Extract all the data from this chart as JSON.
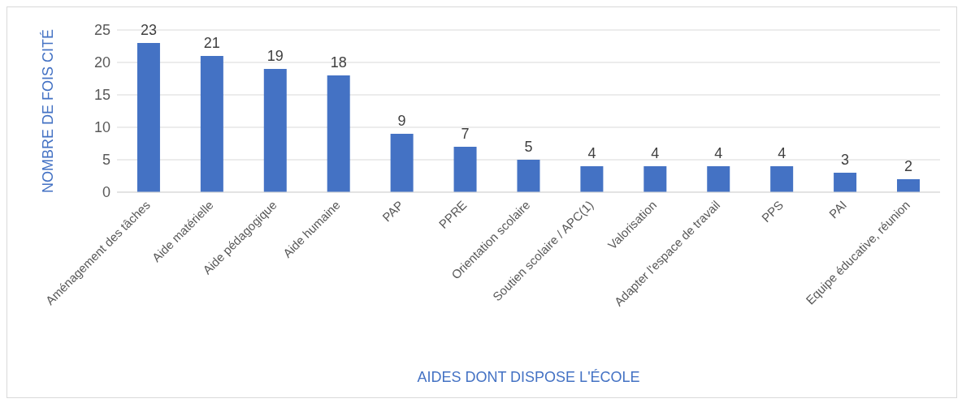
{
  "chart_data": {
    "type": "bar",
    "xlabel": "AIDES DONT DISPOSE L'ÉCOLE",
    "ylabel": "NOMBRE DE FOIS CITÉ",
    "categories": [
      "Aménagement des tâches",
      "Aide matérielle",
      "Aide pédagogique",
      "Aide humaine",
      "PAP",
      "PPRE",
      "Orientation scolaire",
      "Soutien scolaire / APC(1)",
      "Valorisation",
      "Adapter l'espace de travail",
      "PPS",
      "PAI",
      "Equipe éducative, réunion"
    ],
    "values": [
      23,
      21,
      19,
      18,
      9,
      7,
      5,
      4,
      4,
      4,
      4,
      3,
      2
    ],
    "color": "#4472c4",
    "ylim": [
      0,
      25
    ],
    "yticks": [
      0,
      5,
      10,
      15,
      20,
      25
    ],
    "grid": "y",
    "data_labels": true
  }
}
